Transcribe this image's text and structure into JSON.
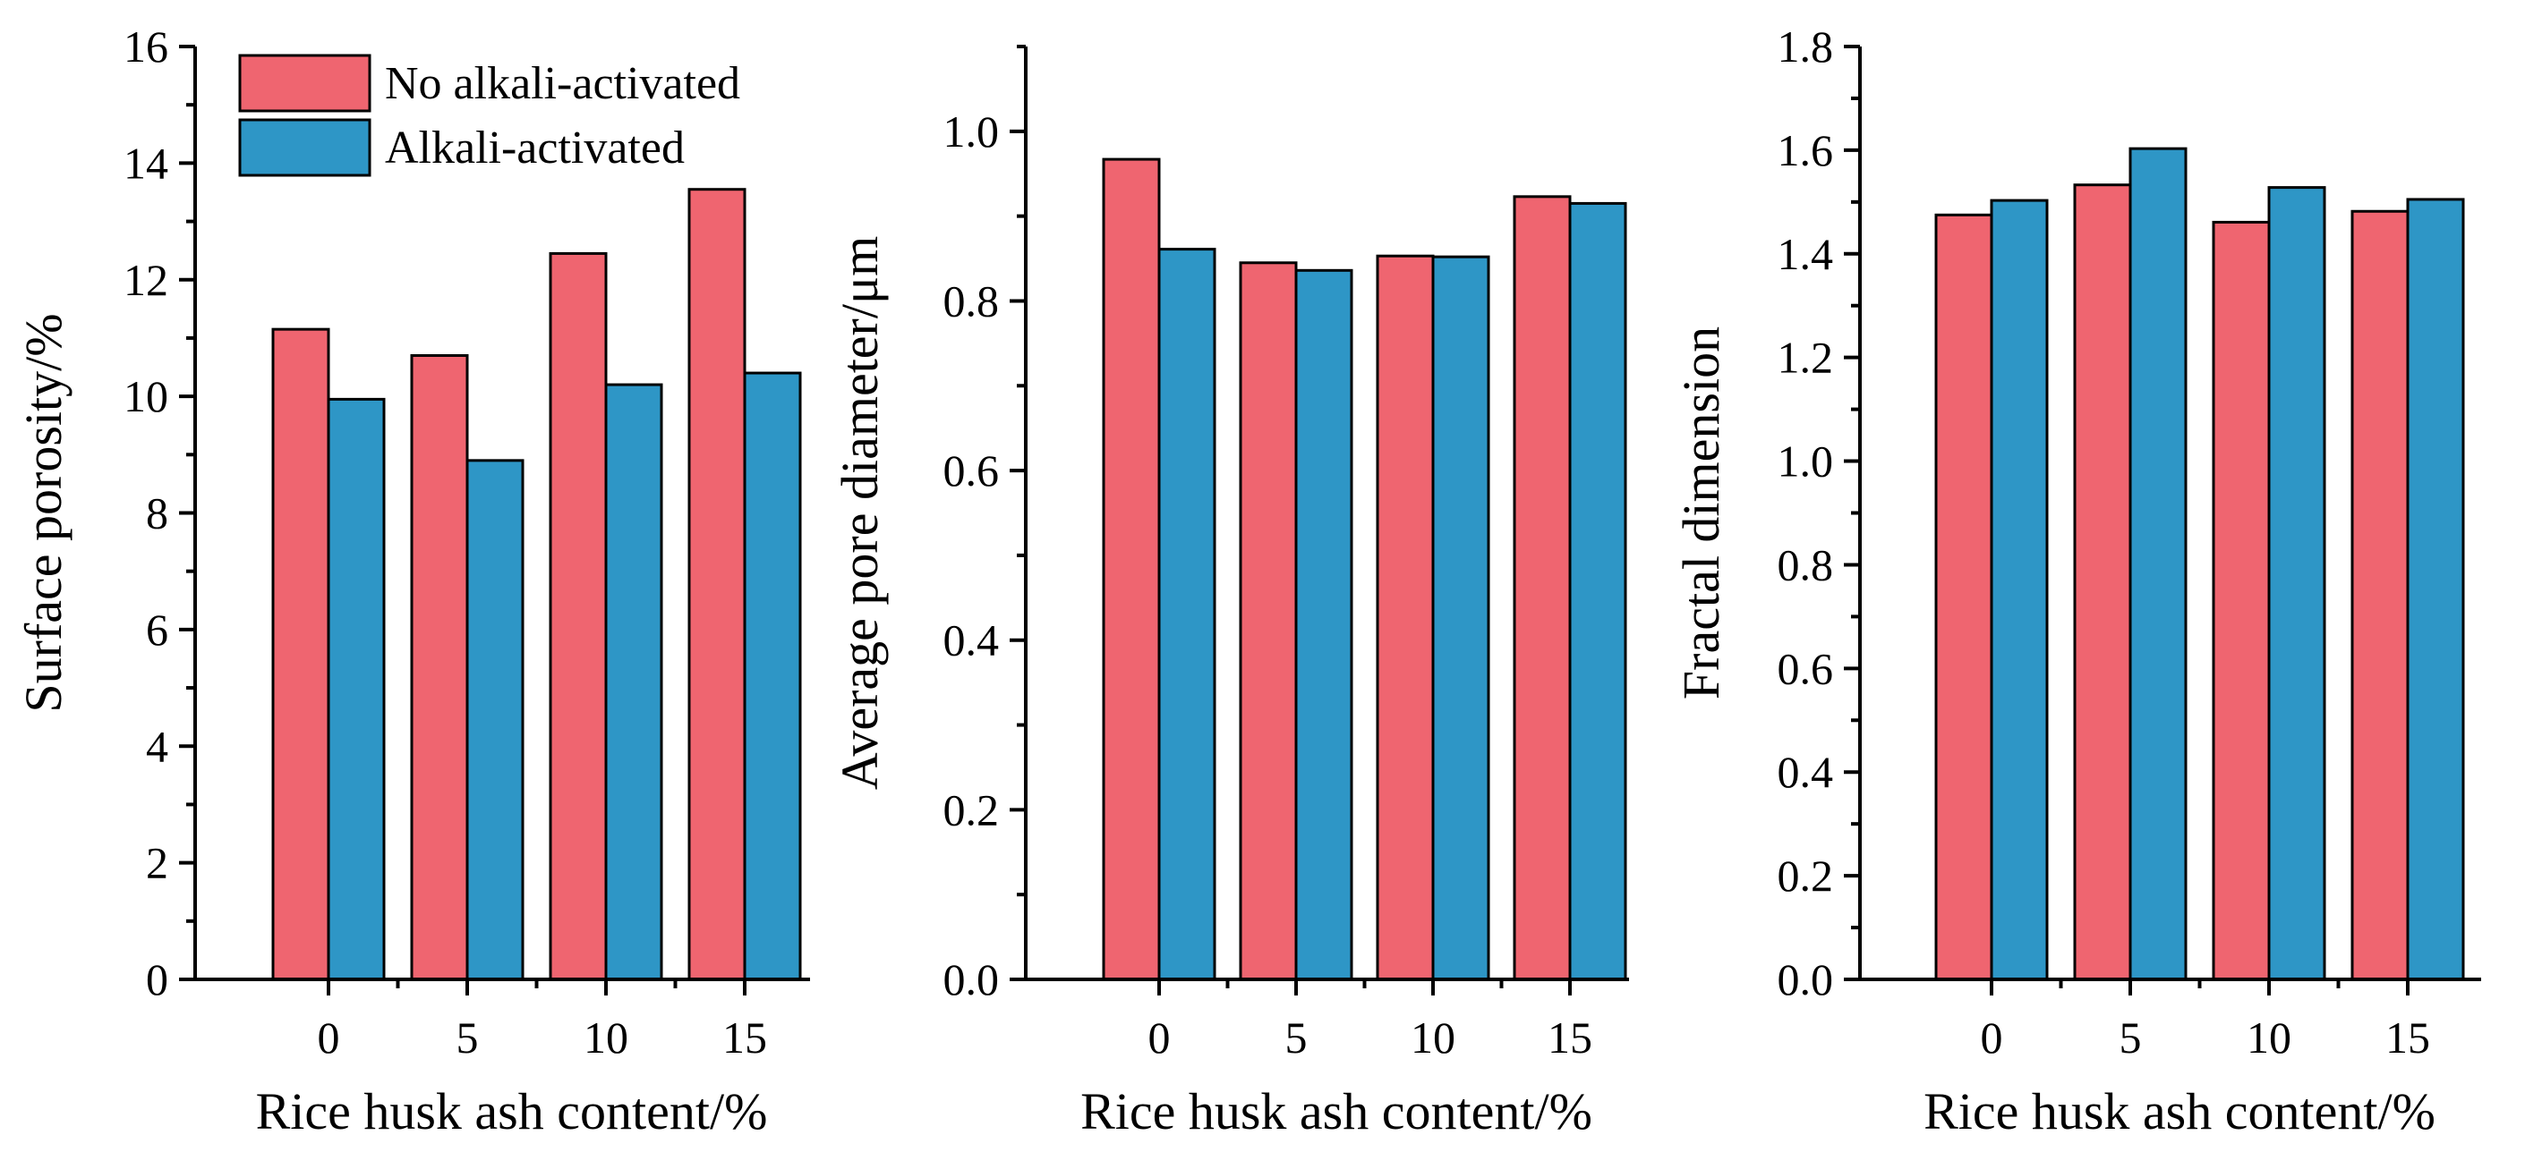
{
  "colors": {
    "no_alkali": "#EF6570",
    "alkali": "#2E96C6",
    "axis": "#000000"
  },
  "chart_data": [
    {
      "type": "bar",
      "categories": [
        "0",
        "5",
        "10",
        "15"
      ],
      "series": [
        {
          "name": "No alkali-activated",
          "values": [
            11.15,
            10.7,
            12.45,
            13.55
          ]
        },
        {
          "name": "Alkali-activated",
          "values": [
            9.95,
            8.9,
            10.2,
            10.4
          ]
        }
      ],
      "xlabel": "Rice husk ash content/%",
      "ylabel": "Surface porosity/%",
      "ylim": [
        0,
        16
      ],
      "yticks": [
        0,
        2,
        4,
        6,
        8,
        10,
        12,
        14,
        16
      ],
      "ytick_labels": [
        "0",
        "2",
        "4",
        "6",
        "8",
        "10",
        "12",
        "14",
        "16"
      ],
      "legend": true,
      "legend_position": "top-left"
    },
    {
      "type": "bar",
      "categories": [
        "0",
        "5",
        "10",
        "15"
      ],
      "series": [
        {
          "name": "No alkali-activated",
          "values": [
            0.967,
            0.845,
            0.853,
            0.923
          ]
        },
        {
          "name": "Alkali-activated",
          "values": [
            0.861,
            0.836,
            0.852,
            0.915
          ]
        }
      ],
      "xlabel": "Rice husk ash content/%",
      "ylabel": "Average pore diameter/μm",
      "ylim": [
        0,
        1.1
      ],
      "yticks": [
        0,
        0.2,
        0.4,
        0.6,
        0.8,
        1.0
      ],
      "ytick_labels": [
        "0.0",
        "0.2",
        "0.4",
        "0.6",
        "0.8",
        "1.0"
      ],
      "legend": false
    },
    {
      "type": "bar",
      "categories": [
        "0",
        "5",
        "10",
        "15"
      ],
      "series": [
        {
          "name": "No alkali-activated",
          "values": [
            1.475,
            1.533,
            1.461,
            1.482
          ]
        },
        {
          "name": "Alkali-activated",
          "values": [
            1.503,
            1.603,
            1.528,
            1.505
          ]
        }
      ],
      "xlabel": "Rice husk ash content/%",
      "ylabel": "Fractal dimension",
      "ylim": [
        0,
        1.8
      ],
      "yticks": [
        0,
        0.2,
        0.4,
        0.6,
        0.8,
        1.0,
        1.2,
        1.4,
        1.6,
        1.8
      ],
      "ytick_labels": [
        "0.0",
        "0.2",
        "0.4",
        "0.6",
        "0.8",
        "1.0",
        "1.2",
        "1.4",
        "1.6",
        "1.8"
      ],
      "legend": false
    }
  ]
}
